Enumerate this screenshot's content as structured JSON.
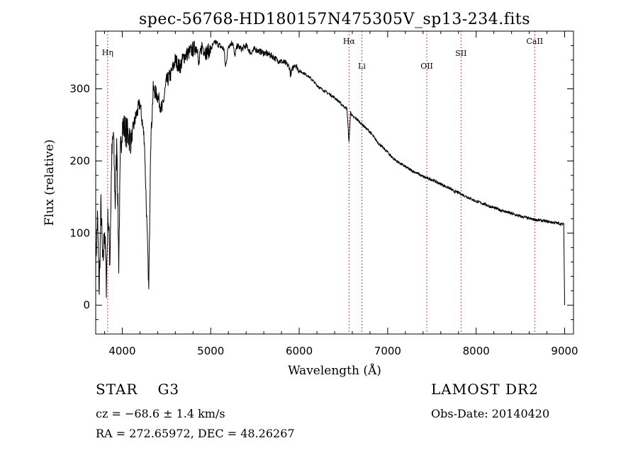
{
  "chart_data": {
    "type": "line",
    "title": "spec-56768-HD180157N475305V_sp13-234.fits",
    "xlabel": "Wavelength (Å)",
    "ylabel": "Flux (relative)",
    "xlim": [
      3700,
      9100
    ],
    "ylim": [
      -40,
      380
    ],
    "xticks": [
      4000,
      5000,
      6000,
      7000,
      8000,
      9000
    ],
    "yticks": [
      0,
      100,
      200,
      300
    ],
    "grid": false,
    "line_color": "#000000",
    "marker_color": "#cc0000",
    "line_markers": [
      {
        "label": "Hη",
        "wavelength": 3835
      },
      {
        "label": "Hα",
        "wavelength": 6563
      },
      {
        "label": "Li",
        "wavelength": 6708
      },
      {
        "label": "OII",
        "wavelength": 7442
      },
      {
        "label": "SII",
        "wavelength": 7829
      },
      {
        "label": "CaII",
        "wavelength": 8662
      }
    ],
    "series": [
      {
        "x": [
          3700,
          3720,
          3740,
          3760,
          3780,
          3800,
          3820,
          3840,
          3860,
          3880,
          3900,
          3920,
          3940,
          3960,
          3980,
          4000,
          4050,
          4100,
          4150,
          4200,
          4250,
          4300,
          4320,
          4350,
          4400,
          4450,
          4500,
          4550,
          4600,
          4650,
          4700,
          4750,
          4800,
          4850,
          4861,
          4900,
          4950,
          5000,
          5050,
          5100,
          5150,
          5167,
          5200,
          5250,
          5270,
          5300,
          5350,
          5400,
          5450,
          5500,
          5550,
          5600,
          5650,
          5700,
          5750,
          5800,
          5850,
          5890,
          5900,
          5950,
          6000,
          6050,
          6100,
          6150,
          6200,
          6250,
          6300,
          6350,
          6400,
          6450,
          6500,
          6540,
          6563,
          6580,
          6600,
          6650,
          6700,
          6750,
          6800,
          6850,
          6900,
          6950,
          7000,
          7050,
          7100,
          7150,
          7200,
          7250,
          7300,
          7350,
          7400,
          7450,
          7500,
          7550,
          7600,
          7650,
          7700,
          7750,
          7800,
          7850,
          7900,
          7950,
          8000,
          8050,
          8100,
          8150,
          8200,
          8250,
          8300,
          8350,
          8400,
          8450,
          8500,
          8550,
          8600,
          8650,
          8700,
          8750,
          8800,
          8850,
          8900,
          8950,
          8980,
          8990,
          9000
        ],
        "y": [
          60,
          120,
          20,
          140,
          50,
          110,
          30,
          130,
          60,
          200,
          240,
          140,
          230,
          60,
          210,
          250,
          240,
          230,
          260,
          280,
          230,
          20,
          220,
          300,
          290,
          270,
          310,
          320,
          340,
          330,
          345,
          350,
          355,
          360,
          330,
          360,
          350,
          355,
          365,
          360,
          355,
          330,
          360,
          365,
          345,
          360,
          355,
          360,
          350,
          355,
          352,
          350,
          348,
          345,
          340,
          338,
          335,
          330,
          320,
          335,
          325,
          322,
          318,
          312,
          305,
          300,
          296,
          292,
          288,
          282,
          276,
          272,
          225,
          268,
          262,
          258,
          252,
          246,
          240,
          232,
          224,
          218,
          212,
          205,
          200,
          196,
          192,
          188,
          185,
          182,
          178,
          176,
          174,
          171,
          168,
          165,
          162,
          158,
          156,
          153,
          150,
          147,
          144,
          142,
          140,
          137,
          135,
          133,
          131,
          129,
          127,
          125,
          123,
          122,
          120,
          119,
          118,
          117,
          116,
          115,
          114,
          113,
          112,
          112,
          0
        ]
      }
    ]
  },
  "info": {
    "object_type": "STAR",
    "subclass": "G3",
    "survey": "LAMOST DR2",
    "cz": "cz = −68.6 ± 1.4 km/s",
    "radec": "RA = 272.65972, DEC =  48.26267",
    "obs_date": "Obs-Date: 20140420"
  }
}
